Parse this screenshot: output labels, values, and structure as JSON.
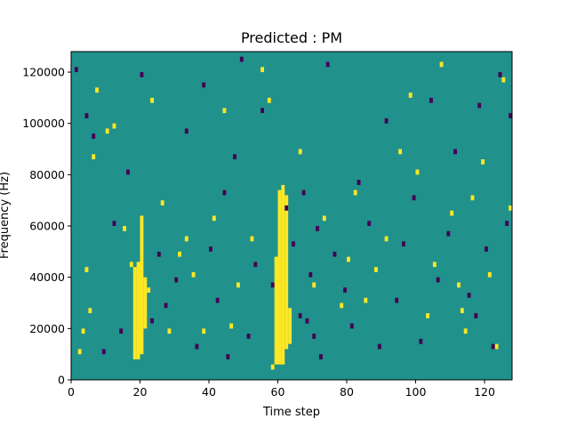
{
  "chart_data": {
    "type": "heatmap",
    "title": "Predicted : PM",
    "xlabel": "Time step",
    "ylabel": "Frequency (Hz)",
    "xlim": [
      0,
      128
    ],
    "ylim": [
      0,
      128000
    ],
    "x_ticks": [
      {
        "value": 0,
        "label": "0"
      },
      {
        "value": 20,
        "label": "20"
      },
      {
        "value": 40,
        "label": "40"
      },
      {
        "value": 60,
        "label": "60"
      },
      {
        "value": 80,
        "label": "80"
      },
      {
        "value": 100,
        "label": "100"
      },
      {
        "value": 120,
        "label": "120"
      }
    ],
    "y_ticks": [
      {
        "value": 0,
        "label": "0"
      },
      {
        "value": 20000,
        "label": "20000"
      },
      {
        "value": 40000,
        "label": "40000"
      },
      {
        "value": 60000,
        "label": "60000"
      },
      {
        "value": 80000,
        "label": "80000"
      },
      {
        "value": 100000,
        "label": "100000"
      },
      {
        "value": 120000,
        "label": "120000"
      }
    ],
    "grid": false,
    "colormap": "viridis",
    "colors": {
      "background": "#21918c",
      "high": "#fde725",
      "low": "#440154"
    },
    "cell_width": 1,
    "cell_height": 2000,
    "yellow_bands": [
      {
        "x": 18,
        "y": [
          8000,
          44000
        ]
      },
      {
        "x": 19,
        "y": [
          8000,
          46000
        ]
      },
      {
        "x": 20,
        "y": [
          10000,
          64000
        ]
      },
      {
        "x": 21,
        "y": [
          20000,
          40000
        ]
      },
      {
        "x": 59,
        "y": [
          6000,
          48000
        ]
      },
      {
        "x": 60,
        "y": [
          6000,
          74000
        ]
      },
      {
        "x": 61,
        "y": [
          6000,
          76000
        ]
      },
      {
        "x": 62,
        "y": [
          12000,
          72000
        ]
      },
      {
        "x": 63,
        "y": [
          14000,
          28000
        ]
      }
    ],
    "yellow_cells": [
      [
        2,
        10000
      ],
      [
        3,
        18000
      ],
      [
        4,
        42000
      ],
      [
        5,
        26000
      ],
      [
        6,
        86000
      ],
      [
        7,
        112000
      ],
      [
        10,
        96000
      ],
      [
        12,
        98000
      ],
      [
        15,
        58000
      ],
      [
        17,
        44000
      ],
      [
        22,
        34000
      ],
      [
        23,
        108000
      ],
      [
        26,
        68000
      ],
      [
        28,
        18000
      ],
      [
        31,
        48000
      ],
      [
        33,
        54000
      ],
      [
        35,
        40000
      ],
      [
        38,
        18000
      ],
      [
        41,
        62000
      ],
      [
        44,
        104000
      ],
      [
        46,
        20000
      ],
      [
        48,
        36000
      ],
      [
        52,
        54000
      ],
      [
        55,
        120000
      ],
      [
        57,
        108000
      ],
      [
        58,
        4000
      ],
      [
        66,
        88000
      ],
      [
        70,
        36000
      ],
      [
        73,
        62000
      ],
      [
        78,
        28000
      ],
      [
        80,
        46000
      ],
      [
        82,
        72000
      ],
      [
        85,
        30000
      ],
      [
        88,
        42000
      ],
      [
        91,
        54000
      ],
      [
        95,
        88000
      ],
      [
        98,
        110000
      ],
      [
        100,
        80000
      ],
      [
        103,
        24000
      ],
      [
        105,
        44000
      ],
      [
        107,
        122000
      ],
      [
        110,
        64000
      ],
      [
        112,
        36000
      ],
      [
        113,
        26000
      ],
      [
        114,
        18000
      ],
      [
        116,
        70000
      ],
      [
        119,
        84000
      ],
      [
        121,
        40000
      ],
      [
        123,
        12000
      ],
      [
        125,
        116000
      ],
      [
        127,
        66000
      ]
    ],
    "dark_cells": [
      [
        1,
        120000
      ],
      [
        4,
        102000
      ],
      [
        6,
        94000
      ],
      [
        9,
        10000
      ],
      [
        12,
        60000
      ],
      [
        14,
        18000
      ],
      [
        16,
        80000
      ],
      [
        20,
        118000
      ],
      [
        23,
        22000
      ],
      [
        25,
        48000
      ],
      [
        27,
        28000
      ],
      [
        30,
        38000
      ],
      [
        33,
        96000
      ],
      [
        36,
        12000
      ],
      [
        38,
        114000
      ],
      [
        40,
        50000
      ],
      [
        42,
        30000
      ],
      [
        44,
        72000
      ],
      [
        45,
        8000
      ],
      [
        47,
        86000
      ],
      [
        49,
        124000
      ],
      [
        51,
        16000
      ],
      [
        53,
        44000
      ],
      [
        55,
        104000
      ],
      [
        58,
        36000
      ],
      [
        62,
        66000
      ],
      [
        64,
        52000
      ],
      [
        66,
        24000
      ],
      [
        67,
        72000
      ],
      [
        68,
        22000
      ],
      [
        69,
        40000
      ],
      [
        70,
        16000
      ],
      [
        71,
        58000
      ],
      [
        72,
        8000
      ],
      [
        74,
        122000
      ],
      [
        76,
        48000
      ],
      [
        79,
        34000
      ],
      [
        81,
        20000
      ],
      [
        83,
        76000
      ],
      [
        86,
        60000
      ],
      [
        89,
        12000
      ],
      [
        91,
        100000
      ],
      [
        94,
        30000
      ],
      [
        96,
        52000
      ],
      [
        99,
        70000
      ],
      [
        101,
        14000
      ],
      [
        104,
        108000
      ],
      [
        106,
        38000
      ],
      [
        109,
        56000
      ],
      [
        111,
        88000
      ],
      [
        115,
        32000
      ],
      [
        117,
        24000
      ],
      [
        118,
        106000
      ],
      [
        120,
        50000
      ],
      [
        122,
        12000
      ],
      [
        124,
        118000
      ],
      [
        126,
        60000
      ],
      [
        127,
        102000
      ]
    ]
  }
}
